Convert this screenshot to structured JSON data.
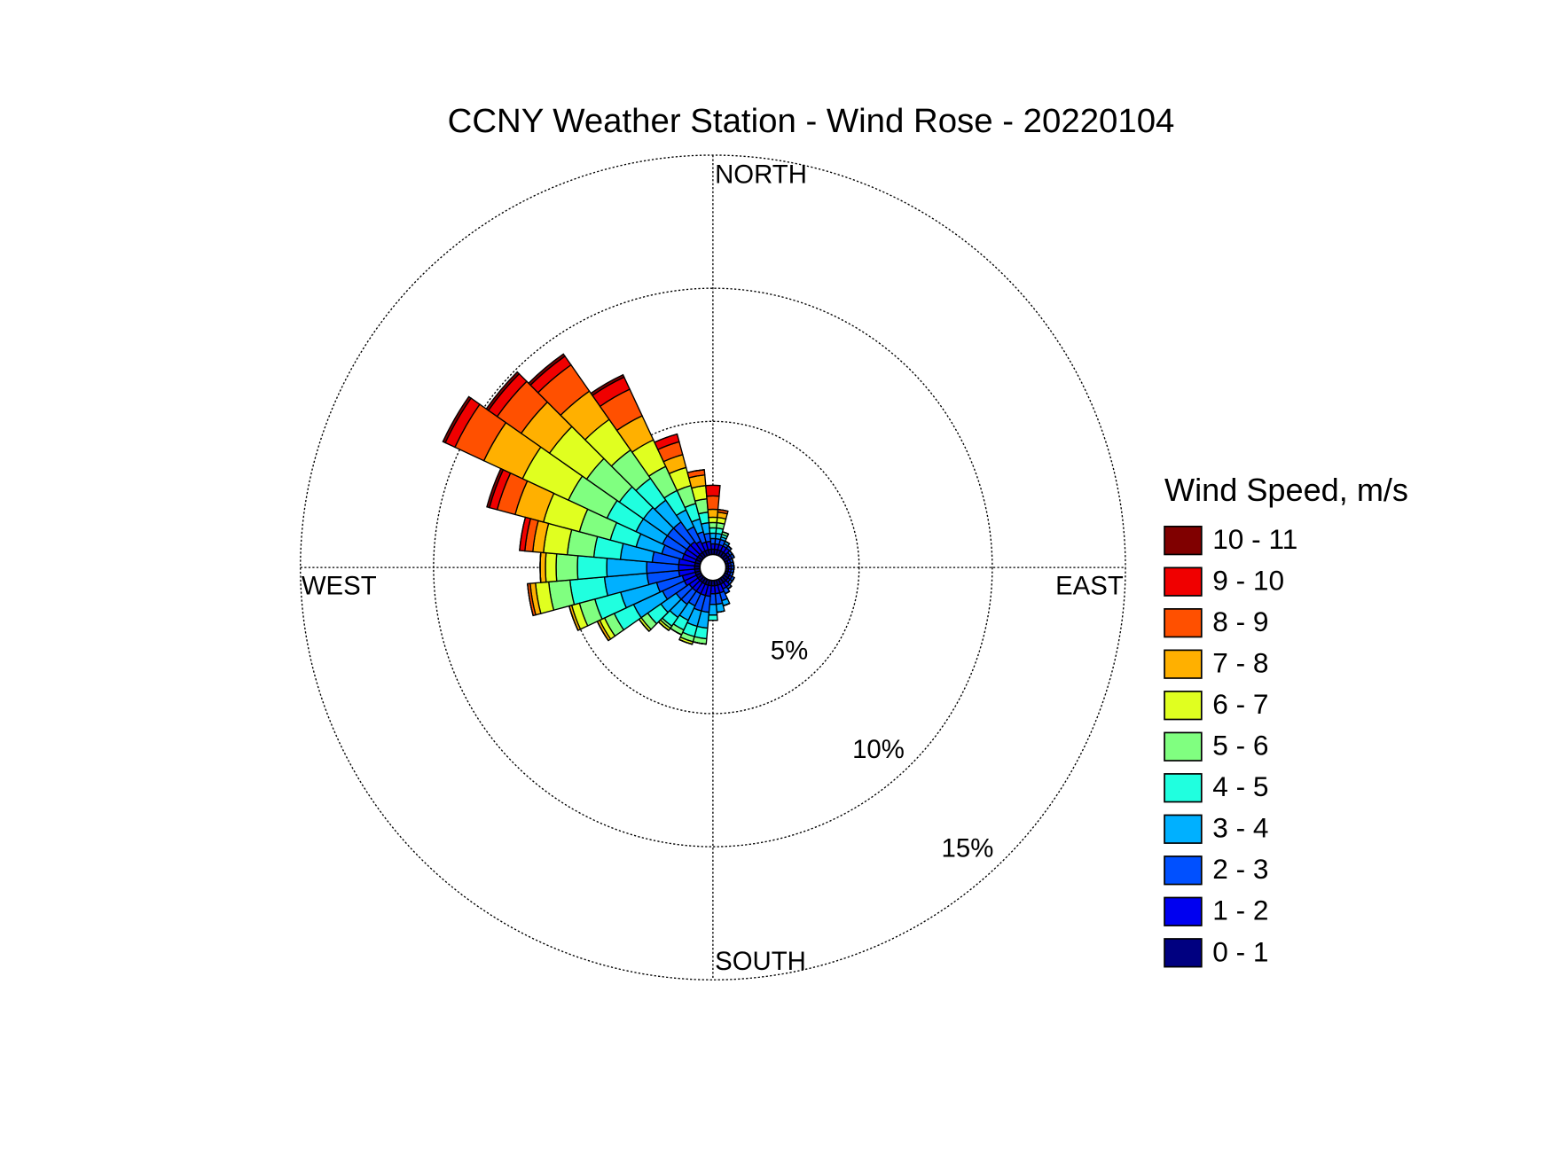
{
  "chart_data": {
    "type": "windrose",
    "title": "CCNY Weather Station - Wind Rose - 20220104",
    "direction_labels": [
      "NORTH",
      "EAST",
      "SOUTH",
      "WEST"
    ],
    "legend_title": "Wind Speed, m/s",
    "x": [
      0,
      10,
      20,
      30,
      40,
      50,
      60,
      70,
      80,
      90,
      100,
      110,
      120,
      130,
      140,
      150,
      160,
      170,
      180,
      190,
      200,
      210,
      220,
      230,
      240,
      250,
      260,
      270,
      280,
      290,
      300,
      310,
      320,
      330,
      340,
      350
    ],
    "rlim": [
      0,
      15
    ],
    "rticks": [
      {
        "value": 5,
        "label": "5%"
      },
      {
        "value": 10,
        "label": "10%"
      },
      {
        "value": 15,
        "label": "15%"
      }
    ],
    "grid": true,
    "series": [
      {
        "name": "0 - 1",
        "color": "#000080",
        "values": [
          0.2,
          0.2,
          0.2,
          0.2,
          0.2,
          0.2,
          0.2,
          0.1,
          0.1,
          0.1,
          0.1,
          0.1,
          0.2,
          0.2,
          0.2,
          0.2,
          0.2,
          0.2,
          0.2,
          0.2,
          0.2,
          0.2,
          0.2,
          0.2,
          0.2,
          0.2,
          0.2,
          0.2,
          0.2,
          0.2,
          0.2,
          0.2,
          0.2,
          0.2,
          0.2,
          0.2
        ]
      },
      {
        "name": "1 - 2",
        "color": "#0000f0",
        "values": [
          0.2,
          0.2,
          0.2,
          0.2,
          0.2,
          0.1,
          0.1,
          0.1,
          0.1,
          0.1,
          0.1,
          0.1,
          0.1,
          0.1,
          0.2,
          0.2,
          0.3,
          0.3,
          0.3,
          0.4,
          0.4,
          0.4,
          0.4,
          0.4,
          0.5,
          0.5,
          0.6,
          0.6,
          0.6,
          0.5,
          0.5,
          0.5,
          0.5,
          0.4,
          0.3,
          0.3
        ]
      },
      {
        "name": "2 - 3",
        "color": "#0050ff",
        "values": [
          0.2,
          0.2,
          0.2,
          0.1,
          0.1,
          0.1,
          0.1,
          0.1,
          0.1,
          0.1,
          0.1,
          0.1,
          0.1,
          0.1,
          0.1,
          0.2,
          0.3,
          0.4,
          0.4,
          0.6,
          0.6,
          0.5,
          0.6,
          0.6,
          0.9,
          1.0,
          1.2,
          1.2,
          1.0,
          0.8,
          0.9,
          0.9,
          0.9,
          0.6,
          0.4,
          0.3
        ]
      },
      {
        "name": "3 - 4",
        "color": "#00b0ff",
        "values": [
          0.2,
          0.2,
          0.1,
          0.1,
          0,
          0,
          0,
          0,
          0,
          0,
          0,
          0,
          0,
          0,
          0,
          0,
          0.2,
          0.3,
          0.4,
          0.6,
          0.6,
          0.6,
          0.6,
          0.7,
          1.2,
          1.4,
          1.6,
          1.5,
          1.2,
          1.0,
          1.1,
          1.1,
          1.0,
          0.7,
          0.5,
          0.4
        ]
      },
      {
        "name": "4 - 5",
        "color": "#20ffdf",
        "values": [
          0.2,
          0.2,
          0.1,
          0,
          0,
          0,
          0,
          0,
          0,
          0,
          0,
          0,
          0,
          0,
          0,
          0,
          0,
          0,
          0.2,
          0.4,
          0.4,
          0.4,
          0.4,
          0.6,
          0.8,
          1.0,
          1.3,
          1.1,
          1.0,
          1.0,
          1.2,
          1.1,
          1.0,
          0.8,
          0.6,
          0.4
        ]
      },
      {
        "name": "5 - 6",
        "color": "#80ff80",
        "values": [
          0.2,
          0.2,
          0.1,
          0,
          0,
          0,
          0,
          0,
          0,
          0,
          0,
          0,
          0,
          0,
          0,
          0,
          0,
          0,
          0,
          0.2,
          0.2,
          0.2,
          0.1,
          0.3,
          0.4,
          0.6,
          0.8,
          0.8,
          1.0,
          1.2,
          1.6,
          1.5,
          1.3,
          1.0,
          0.7,
          0.5
        ]
      },
      {
        "name": "6 - 7",
        "color": "#e0ff20",
        "values": [
          0.2,
          0.2,
          0,
          0,
          0,
          0,
          0,
          0,
          0,
          0,
          0,
          0,
          0,
          0,
          0,
          0,
          0,
          0,
          0,
          0,
          0.1,
          0,
          0.1,
          0.1,
          0.2,
          0.3,
          0.5,
          0.4,
          0.9,
          1.4,
          1.9,
          1.7,
          1.4,
          1.1,
          0.7,
          0.5
        ]
      },
      {
        "name": "7 - 8",
        "color": "#ffb000",
        "values": [
          0.3,
          0.2,
          0,
          0,
          0,
          0,
          0,
          0,
          0,
          0,
          0,
          0,
          0,
          0,
          0,
          0,
          0,
          0,
          0,
          0,
          0,
          0,
          0,
          0,
          0.1,
          0.1,
          0.2,
          0.2,
          0.4,
          1.1,
          1.6,
          1.3,
          1.3,
          1.0,
          0.5,
          0.4
        ]
      },
      {
        "name": "8 - 9",
        "color": "#ff5000",
        "values": [
          0.5,
          0.1,
          0,
          0,
          0,
          0,
          0,
          0,
          0,
          0,
          0,
          0,
          0,
          0,
          0,
          0,
          0,
          0,
          0,
          0,
          0,
          0,
          0,
          0,
          0,
          0,
          0.1,
          0,
          0.3,
          0.7,
          1.2,
          1.1,
          1.2,
          1.1,
          0.5,
          0.2
        ]
      },
      {
        "name": "9 - 10",
        "color": "#f00000",
        "values": [
          0.4,
          0,
          0,
          0,
          0,
          0,
          0,
          0,
          0,
          0,
          0,
          0,
          0,
          0,
          0,
          0,
          0,
          0,
          0,
          0,
          0,
          0,
          0,
          0,
          0,
          0,
          0,
          0,
          0.2,
          0.3,
          0.4,
          0.4,
          0.4,
          0.5,
          0.3,
          0
        ]
      },
      {
        "name": "10 - 11",
        "color": "#800000",
        "values": [
          0,
          0,
          0,
          0,
          0,
          0,
          0,
          0,
          0,
          0,
          0,
          0,
          0,
          0,
          0,
          0,
          0,
          0,
          0,
          0,
          0,
          0,
          0,
          0,
          0,
          0,
          0,
          0,
          0,
          0.1,
          0.1,
          0.1,
          0.1,
          0.1,
          0,
          0
        ]
      }
    ]
  }
}
